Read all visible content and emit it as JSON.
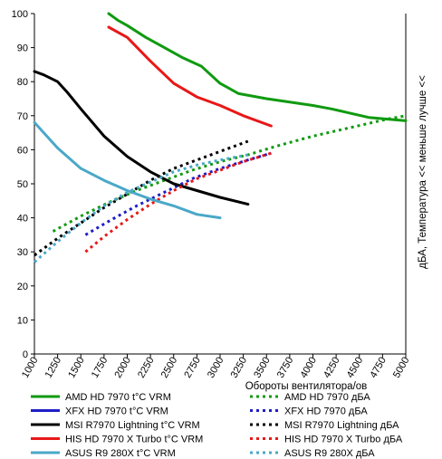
{
  "chart_data": {
    "type": "line",
    "xlabel": "Обороты вентилятора/ов",
    "ylabel": "дБА, Температура << меньше лучше <<",
    "xlim": [
      1000,
      5000
    ],
    "ylim": [
      0,
      100
    ],
    "xticks": [
      1000,
      1250,
      1500,
      1750,
      2000,
      2250,
      2500,
      2750,
      3000,
      3250,
      3500,
      3750,
      4000,
      4250,
      4500,
      4750,
      5000
    ],
    "yticks": [
      0,
      10,
      20,
      30,
      40,
      50,
      60,
      70,
      80,
      90,
      100
    ],
    "grid": false,
    "legend_position": "bottom",
    "series": [
      {
        "name": "AMD HD  7970 t°C VRM",
        "color": "#109a10",
        "style": "solid",
        "x": [
          1800,
          1900,
          2000,
          2200,
          2400,
          2600,
          2800,
          3000,
          3200,
          3500,
          4000,
          4200,
          4600,
          5000
        ],
        "y": [
          100,
          98,
          96.5,
          93,
          90,
          87,
          84.5,
          79.5,
          76.5,
          75,
          73,
          72,
          69.5,
          68.5
        ]
      },
      {
        "name": "AMD HD  7970 дБА",
        "color": "#109a10",
        "style": "dotted",
        "x": [
          1200,
          1500,
          1800,
          2100,
          2400,
          2700,
          3000,
          3300,
          3600,
          4000,
          4400,
          4800,
          5000
        ],
        "y": [
          36,
          40.5,
          44.5,
          48,
          51,
          54,
          56.5,
          58.5,
          61,
          64,
          66.5,
          69,
          70
        ]
      },
      {
        "name": "XFX HD  7970 t°C VRM",
        "color": "#1e1ec8",
        "style": "solid",
        "x": [],
        "y": []
      },
      {
        "name": "XFX HD  7970 дБА",
        "color": "#1e1ec8",
        "style": "dotted",
        "x": [
          1550,
          1800,
          2100,
          2400,
          2700,
          3000,
          3300,
          3550
        ],
        "y": [
          35,
          39,
          43.5,
          47.5,
          51.5,
          54.5,
          57,
          59
        ]
      },
      {
        "name": "MSI R7970 Lightning t°C VRM",
        "color": "#000000",
        "style": "solid",
        "x": [
          1000,
          1100,
          1250,
          1350,
          1500,
          1750,
          2000,
          2250,
          2500,
          2750,
          3000,
          3300
        ],
        "y": [
          83,
          82,
          80,
          77,
          72,
          64,
          58,
          53.5,
          50,
          48,
          46,
          44
        ]
      },
      {
        "name": "MSI R7970 Lightning дБА",
        "color": "#000000",
        "style": "dotted",
        "x": [
          1000,
          1250,
          1500,
          1750,
          2000,
          2250,
          2500,
          2750,
          3000,
          3300
        ],
        "y": [
          29,
          34,
          38.5,
          43,
          47,
          51,
          54.5,
          57,
          59.5,
          62.5
        ]
      },
      {
        "name": "HIS HD  7970 X Turbo t°C VRM",
        "color": "#e81818",
        "style": "solid",
        "x": [
          1800,
          2000,
          2250,
          2500,
          2750,
          3000,
          3250,
          3550
        ],
        "y": [
          96,
          93,
          86,
          79.5,
          75.5,
          73,
          70,
          67
        ]
      },
      {
        "name": "HIS HD  7970 X Turbo дБА",
        "color": "#e81818",
        "style": "dotted",
        "x": [
          1550,
          1750,
          2000,
          2250,
          2500,
          2750,
          3000,
          3250,
          3550
        ],
        "y": [
          30,
          34.5,
          39.5,
          44,
          48,
          51.5,
          54,
          56.5,
          59
        ]
      },
      {
        "name": "ASUS R9 280X t°C VRM",
        "color": "#4aa8c8",
        "style": "solid",
        "x": [
          1000,
          1100,
          1250,
          1500,
          1750,
          2000,
          2250,
          2500,
          2750,
          3000
        ],
        "y": [
          68,
          65,
          60.5,
          54.5,
          51,
          48,
          45.5,
          43.5,
          41,
          40
        ]
      },
      {
        "name": "ASUS R9 280X дБА",
        "color": "#4aa8c8",
        "style": "dotted",
        "x": [
          1000,
          1250,
          1500,
          1750,
          2000,
          2250,
          2500,
          2750,
          3000,
          3300
        ],
        "y": [
          27,
          33,
          38.5,
          43.5,
          47.5,
          50.5,
          53.5,
          55.5,
          57,
          58.5
        ]
      }
    ]
  }
}
